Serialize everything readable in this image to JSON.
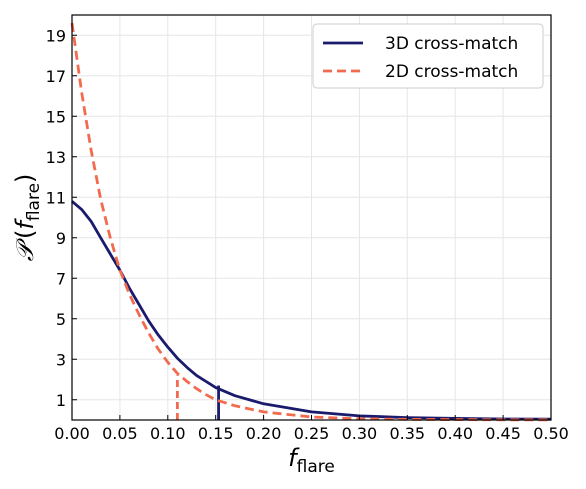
{
  "chart_data": {
    "type": "line",
    "title": "",
    "xlabel": {
      "main": "f",
      "subscript": "flare"
    },
    "ylabel": {
      "main": "𝒫",
      "open": "(",
      "var": "f",
      "subscript": "flare",
      "close": ")"
    },
    "xlim": [
      0.0,
      0.5
    ],
    "ylim": [
      0.0,
      20.0
    ],
    "xticks": [
      0.0,
      0.05,
      0.1,
      0.15,
      0.2,
      0.25,
      0.3,
      0.35,
      0.4,
      0.45,
      0.5
    ],
    "xtick_labels": [
      "0.00",
      "0.05",
      "0.10",
      "0.15",
      "0.20",
      "0.25",
      "0.30",
      "0.35",
      "0.40",
      "0.45",
      "0.50"
    ],
    "yticks": [
      1,
      3,
      5,
      7,
      9,
      11,
      13,
      15,
      17,
      19
    ],
    "ytick_labels": [
      "1",
      "3",
      "5",
      "7",
      "9",
      "11",
      "13",
      "15",
      "17",
      "19"
    ],
    "grid": true,
    "legend_position": "top-right",
    "series": [
      {
        "name": "3D cross-match",
        "color": "#1b1b6e",
        "style": "solid",
        "x": [
          0.0,
          0.01,
          0.02,
          0.03,
          0.04,
          0.05,
          0.06,
          0.07,
          0.08,
          0.09,
          0.1,
          0.11,
          0.12,
          0.13,
          0.14,
          0.15,
          0.17,
          0.2,
          0.25,
          0.3,
          0.35,
          0.4,
          0.45,
          0.5
        ],
        "y": [
          10.8,
          10.4,
          9.8,
          9.0,
          8.2,
          7.4,
          6.5,
          5.7,
          4.9,
          4.2,
          3.6,
          3.05,
          2.6,
          2.2,
          1.9,
          1.6,
          1.2,
          0.8,
          0.4,
          0.2,
          0.12,
          0.08,
          0.05,
          0.04
        ],
        "marker_line": {
          "x": 0.153,
          "y": 1.7
        }
      },
      {
        "name": "2D cross-match",
        "color": "#f26b4f",
        "style": "dashed",
        "x": [
          0.0,
          0.01,
          0.02,
          0.03,
          0.04,
          0.05,
          0.06,
          0.07,
          0.08,
          0.09,
          0.1,
          0.11,
          0.12,
          0.13,
          0.14,
          0.15,
          0.17,
          0.2,
          0.25,
          0.3,
          0.35,
          0.4,
          0.45,
          0.5
        ],
        "y": [
          19.6,
          16.2,
          13.3,
          10.9,
          9.0,
          7.4,
          6.2,
          5.2,
          4.3,
          3.5,
          2.85,
          2.3,
          1.9,
          1.55,
          1.25,
          1.0,
          0.7,
          0.4,
          0.15,
          0.06,
          0.03,
          0.02,
          0.01,
          0.01
        ],
        "marker_line": {
          "x": 0.11,
          "y": 2.2
        }
      }
    ]
  }
}
